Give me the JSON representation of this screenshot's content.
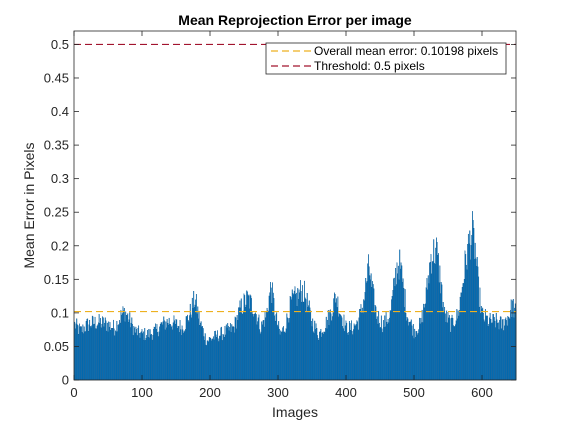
{
  "chart_data": {
    "type": "bar",
    "title": "Mean Reprojection Error per image",
    "xlabel": "Images",
    "ylabel": "Mean Error in Pixels",
    "xlim": [
      0,
      650
    ],
    "ylim": [
      0,
      0.52
    ],
    "xticks": [
      0,
      100,
      200,
      300,
      400,
      500,
      600
    ],
    "yticks": [
      0,
      0.05,
      0.1,
      0.15,
      0.2,
      0.25,
      0.3,
      0.35,
      0.4,
      0.45,
      0.5
    ],
    "ytick_labels": [
      "0",
      "0.05",
      "0.1",
      "0.15",
      "0.2",
      "0.25",
      "0.3",
      "0.35",
      "0.4",
      "0.45",
      "0.5"
    ],
    "grid": false,
    "legend_placement": "top-right",
    "bar_color": "#0072BD",
    "bar_edge_color": "#0b4f86",
    "envelope_keypoints": [
      [
        1,
        0.085
      ],
      [
        10,
        0.075
      ],
      [
        20,
        0.085
      ],
      [
        30,
        0.088
      ],
      [
        40,
        0.088
      ],
      [
        50,
        0.085
      ],
      [
        60,
        0.08
      ],
      [
        70,
        0.1
      ],
      [
        75,
        0.105
      ],
      [
        80,
        0.095
      ],
      [
        90,
        0.075
      ],
      [
        100,
        0.07
      ],
      [
        110,
        0.07
      ],
      [
        120,
        0.075
      ],
      [
        130,
        0.085
      ],
      [
        140,
        0.09
      ],
      [
        150,
        0.085
      ],
      [
        160,
        0.08
      ],
      [
        170,
        0.1
      ],
      [
        178,
        0.125
      ],
      [
        185,
        0.09
      ],
      [
        195,
        0.06
      ],
      [
        205,
        0.065
      ],
      [
        215,
        0.07
      ],
      [
        225,
        0.075
      ],
      [
        235,
        0.08
      ],
      [
        245,
        0.11
      ],
      [
        255,
        0.125
      ],
      [
        265,
        0.11
      ],
      [
        275,
        0.08
      ],
      [
        283,
        0.1
      ],
      [
        290,
        0.145
      ],
      [
        296,
        0.1
      ],
      [
        303,
        0.07
      ],
      [
        310,
        0.08
      ],
      [
        320,
        0.12
      ],
      [
        330,
        0.13
      ],
      [
        335,
        0.14
      ],
      [
        340,
        0.13
      ],
      [
        350,
        0.09
      ],
      [
        360,
        0.07
      ],
      [
        370,
        0.085
      ],
      [
        380,
        0.11
      ],
      [
        385,
        0.13
      ],
      [
        390,
        0.11
      ],
      [
        400,
        0.08
      ],
      [
        410,
        0.08
      ],
      [
        418,
        0.09
      ],
      [
        425,
        0.115
      ],
      [
        430,
        0.15
      ],
      [
        434,
        0.175
      ],
      [
        438,
        0.14
      ],
      [
        445,
        0.1
      ],
      [
        455,
        0.085
      ],
      [
        465,
        0.1
      ],
      [
        475,
        0.175
      ],
      [
        478,
        0.18
      ],
      [
        482,
        0.16
      ],
      [
        490,
        0.1
      ],
      [
        500,
        0.075
      ],
      [
        510,
        0.085
      ],
      [
        518,
        0.13
      ],
      [
        525,
        0.19
      ],
      [
        533,
        0.2
      ],
      [
        538,
        0.16
      ],
      [
        545,
        0.1
      ],
      [
        555,
        0.085
      ],
      [
        565,
        0.1
      ],
      [
        575,
        0.175
      ],
      [
        582,
        0.215
      ],
      [
        586,
        0.225
      ],
      [
        590,
        0.2
      ],
      [
        595,
        0.14
      ],
      [
        600,
        0.1
      ],
      [
        610,
        0.09
      ],
      [
        620,
        0.09
      ],
      [
        630,
        0.085
      ],
      [
        640,
        0.1
      ],
      [
        645,
        0.115
      ],
      [
        650,
        0.1
      ]
    ],
    "series": [
      {
        "name": "Overall mean error: 0.10198 pixels",
        "type": "line",
        "style": "dashed",
        "color": "#EDB120",
        "y": 0.10198
      },
      {
        "name": "Threshold: 0.5 pixels",
        "type": "line",
        "style": "dashed",
        "color": "#A2142F",
        "y": 0.5
      }
    ]
  }
}
